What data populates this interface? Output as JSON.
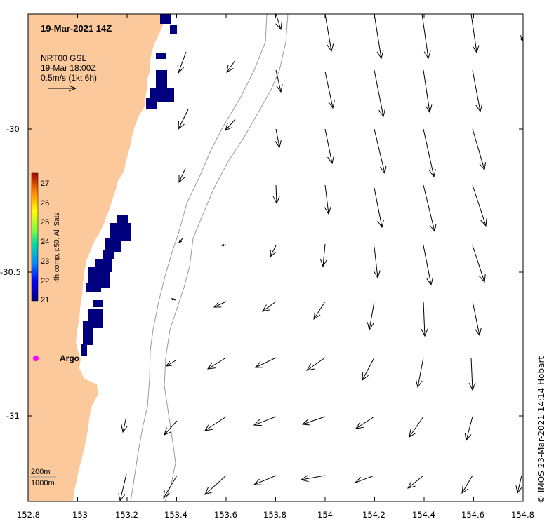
{
  "title": "19-Mar-2021 14Z",
  "legend": {
    "line1": "NRT00 GSL",
    "line2": "19-Mar 18:00Z",
    "line3": "0.5m/s (1kt 6h)"
  },
  "colorbar": {
    "label": "4h comp, p50, All Sats",
    "ticks": [
      "27",
      "26",
      "25",
      "24",
      "23",
      "22",
      "21"
    ]
  },
  "argo_label": "Argo",
  "isobaths": {
    "shallow": "200m",
    "deep": "1000m"
  },
  "credit": "© IMOS 23-Mar-2021 14:14 Hobart",
  "x_ticks": [
    "152.8",
    "153",
    "153.2",
    "153.4",
    "153.6",
    "153.8",
    "154",
    "154.2",
    "154.4",
    "154.6",
    "154.8"
  ],
  "y_ticks": [
    "-30",
    "-30.5",
    "-31"
  ],
  "colors": {
    "land": "#fcc99c",
    "sst_cold": "#00007f",
    "argo": "#ff00ff",
    "isobath": "#9a9a9a"
  }
}
